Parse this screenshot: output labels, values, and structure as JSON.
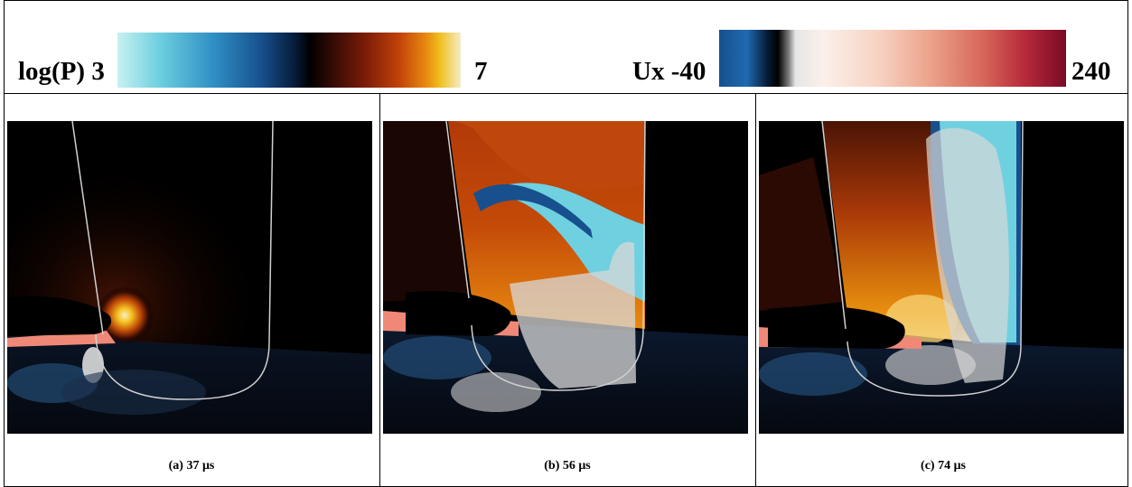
{
  "colorbars": {
    "pressure": {
      "label": "log(P)",
      "min": "3",
      "max": "7"
    },
    "velocity": {
      "label": "Ux",
      "min": "-40",
      "max": "240"
    }
  },
  "panels": [
    {
      "caption": "(a) 37 μs"
    },
    {
      "caption": "(b) 56 μs"
    },
    {
      "caption": "(c) 74 μs"
    }
  ],
  "colors": {
    "background": "#000000",
    "low_pressure": "#6fd0e0",
    "high_pressure": "#e88a10",
    "surface_outline": "#d0d0d0"
  }
}
